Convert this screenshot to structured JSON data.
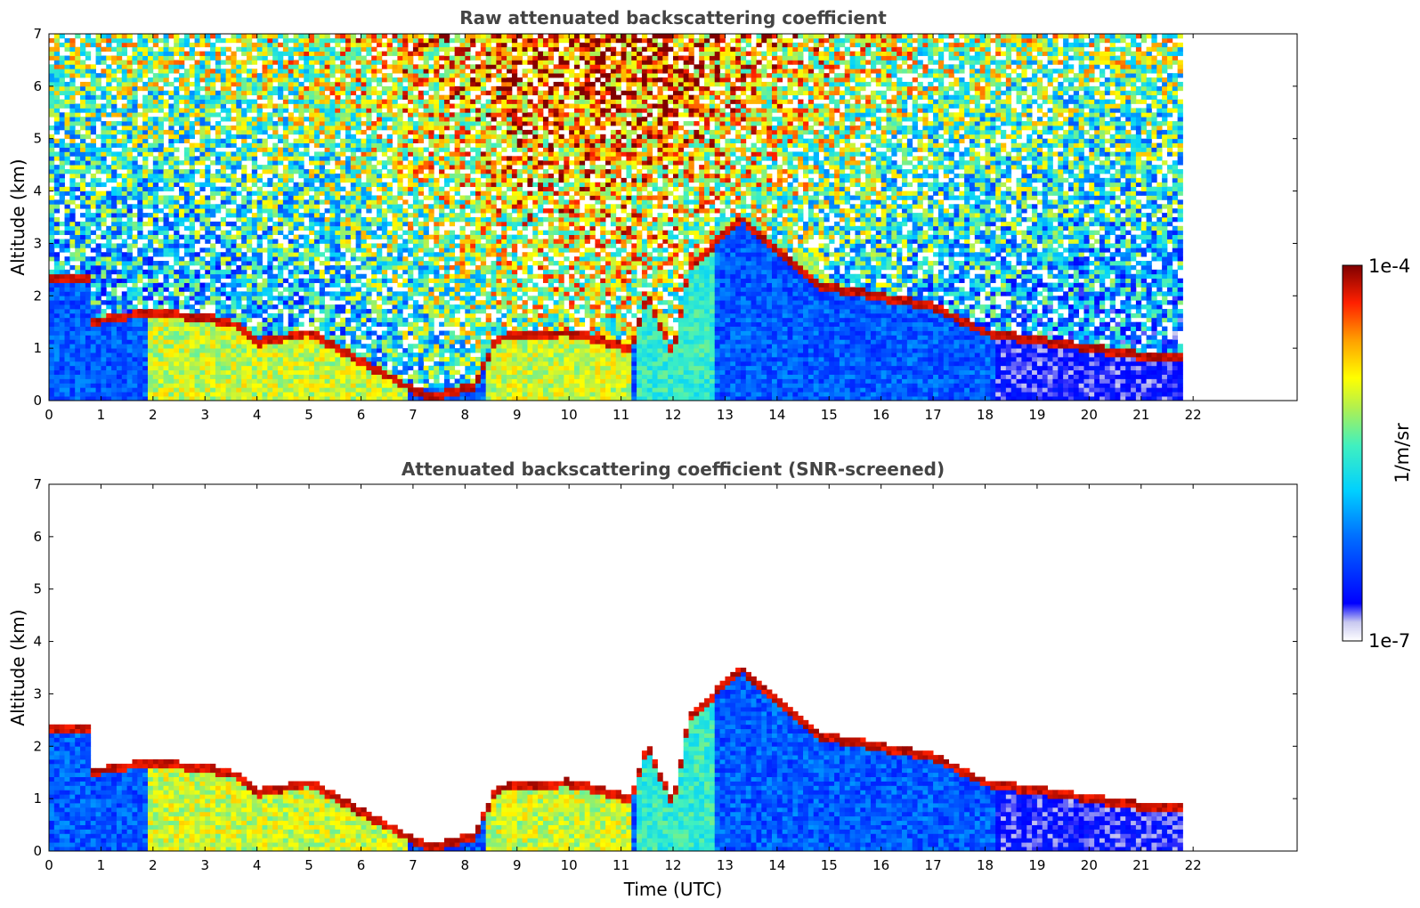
{
  "chart_data": [
    {
      "type": "heatmap",
      "title": "Raw attenuated backscattering coefficient",
      "ylabel": "Altitude (km)",
      "xlabel": "",
      "xlim": [
        0,
        24
      ],
      "ylim": [
        0,
        7
      ],
      "xticks": [
        "0",
        "1",
        "2",
        "3",
        "4",
        "5",
        "6",
        "7",
        "8",
        "9",
        "10",
        "11",
        "12",
        "13",
        "14",
        "15",
        "16",
        "17",
        "18",
        "19",
        "20",
        "21",
        "22"
      ],
      "yticks": [
        "0",
        "1",
        "2",
        "3",
        "4",
        "5",
        "6",
        "7"
      ],
      "data_end_time": 21.8,
      "cloud_layer_trace": [
        {
          "t": 0.0,
          "alt": 2.3
        },
        {
          "t": 0.8,
          "alt": 2.3
        },
        {
          "t": 0.8,
          "alt": 1.5
        },
        {
          "t": 2.0,
          "alt": 1.7
        },
        {
          "t": 3.5,
          "alt": 1.5
        },
        {
          "t": 4.0,
          "alt": 1.1
        },
        {
          "t": 5.0,
          "alt": 1.3
        },
        {
          "t": 7.3,
          "alt": 0.05
        },
        {
          "t": 8.2,
          "alt": 0.3
        },
        {
          "t": 8.6,
          "alt": 1.2
        },
        {
          "t": 10.0,
          "alt": 1.3
        },
        {
          "t": 11.2,
          "alt": 1.0
        },
        {
          "t": 11.5,
          "alt": 2.0
        },
        {
          "t": 12.0,
          "alt": 0.9
        },
        {
          "t": 12.3,
          "alt": 2.5
        },
        {
          "t": 13.3,
          "alt": 3.5
        },
        {
          "t": 14.8,
          "alt": 2.2
        },
        {
          "t": 17.0,
          "alt": 1.8
        },
        {
          "t": 18.0,
          "alt": 1.3
        },
        {
          "t": 21.4,
          "alt": 0.8
        }
      ]
    },
    {
      "type": "heatmap",
      "title": "Attenuated backscattering coefficient (SNR-screened)",
      "ylabel": "Altitude (km)",
      "xlabel": "Time (UTC)",
      "xlim": [
        0,
        24
      ],
      "ylim": [
        0,
        7
      ],
      "xticks": [
        "0",
        "1",
        "2",
        "3",
        "4",
        "5",
        "6",
        "7",
        "8",
        "9",
        "10",
        "11",
        "12",
        "13",
        "14",
        "15",
        "16",
        "17",
        "18",
        "19",
        "20",
        "21",
        "22"
      ],
      "yticks": [
        "0",
        "1",
        "2",
        "3",
        "4",
        "5",
        "6",
        "7"
      ],
      "data_end_time": 21.8
    }
  ],
  "colorbar": {
    "label": "1/m/sr",
    "max_label": "1e-4",
    "min_label": "1e-7",
    "colormap": [
      "#ffffff",
      "#e6e6f5",
      "#c8c8f0",
      "#0000ff",
      "#0050ff",
      "#00c8ff",
      "#40f0c0",
      "#b0f050",
      "#ffff00",
      "#ffb000",
      "#ff4000",
      "#d00000",
      "#800000"
    ]
  }
}
